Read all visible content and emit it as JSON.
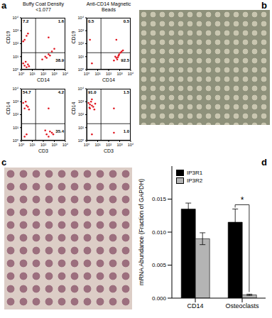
{
  "chart_data": [
    {
      "type": "scatter",
      "panel": "a",
      "title": "Buffy Coat Density <1.077",
      "xlabel": "CD14",
      "ylabel": "CD19",
      "color": "#e0141e",
      "log": true,
      "xlim": [
        1,
        10000
      ],
      "ylim": [
        1,
        10000
      ],
      "xticks": [
        {
          "value": 1,
          "label": "10⁰"
        },
        {
          "value": 10,
          "label": "10¹"
        },
        {
          "value": 100,
          "label": "10²"
        },
        {
          "value": 1000,
          "label": "10³"
        },
        {
          "value": 10000,
          "label": "10⁴"
        }
      ],
      "yticks": [
        {
          "value": 1,
          "label": "10⁰"
        },
        {
          "value": 10,
          "label": "10¹"
        },
        {
          "value": 100,
          "label": "10²"
        },
        {
          "value": 1000,
          "label": "10³"
        },
        {
          "value": 10000,
          "label": "10⁴"
        }
      ],
      "gates": {
        "x": 20,
        "y": 20
      },
      "x": [
        2,
        3,
        1.5,
        4,
        2.5,
        5,
        80,
        150,
        300,
        600,
        1000,
        200,
        400,
        2,
        3,
        1.5,
        4,
        300
      ],
      "y": [
        2,
        1.5,
        3,
        2.5,
        4,
        1.8,
        6,
        10,
        15,
        25,
        40,
        8,
        12,
        200,
        400,
        150,
        600,
        300
      ],
      "annotations": [
        {
          "text": "7.2",
          "position": "top-left"
        },
        {
          "text": "1.6",
          "position": "top-right"
        },
        {
          "text": "38.9",
          "position": "bottom-right"
        }
      ]
    },
    {
      "type": "scatter",
      "title": "Anti-CD14 Magnetic Beads",
      "xlabel": "CD14",
      "ylabel": "CD19",
      "color": "#e0141e",
      "log": true,
      "xlim": [
        1,
        10000
      ],
      "ylim": [
        1,
        10000
      ],
      "xticks": [
        {
          "value": 1,
          "label": "10⁰"
        },
        {
          "value": 10,
          "label": "10¹"
        },
        {
          "value": 100,
          "label": "10²"
        },
        {
          "value": 1000,
          "label": "10³"
        },
        {
          "value": 10000,
          "label": "10⁴"
        }
      ],
      "yticks": [
        {
          "value": 1,
          "label": "10⁰"
        },
        {
          "value": 10,
          "label": "10¹"
        },
        {
          "value": 100,
          "label": "10²"
        },
        {
          "value": 1000,
          "label": "10³"
        },
        {
          "value": 10000,
          "label": "10⁴"
        }
      ],
      "gates": {
        "x": 20,
        "y": 20
      },
      "x": [
        300,
        500,
        800,
        1200,
        600,
        400,
        900,
        2000,
        700,
        1500,
        3,
        2,
        500
      ],
      "y": [
        5,
        8,
        12,
        20,
        6,
        10,
        15,
        30,
        9,
        25,
        3,
        200,
        200
      ],
      "annotations": [
        {
          "text": "0.5",
          "position": "top-left"
        },
        {
          "text": "0.5",
          "position": "top-right"
        },
        {
          "text": "92.5",
          "position": "bottom-right"
        }
      ]
    },
    {
      "type": "scatter",
      "xlabel": "CD3",
      "ylabel": "CD14",
      "color": "#e0141e",
      "log": true,
      "xlim": [
        1,
        10000
      ],
      "ylim": [
        1,
        10000
      ],
      "xticks": [
        {
          "value": 1,
          "label": "10⁰"
        },
        {
          "value": 10,
          "label": "10¹"
        },
        {
          "value": 100,
          "label": "10²"
        },
        {
          "value": 1000,
          "label": "10³"
        },
        {
          "value": 10000,
          "label": "10⁴"
        }
      ],
      "yticks": [
        {
          "value": 1,
          "label": "10⁰"
        },
        {
          "value": 10,
          "label": "10¹"
        },
        {
          "value": 100,
          "label": "10²"
        },
        {
          "value": 1000,
          "label": "10³"
        },
        {
          "value": 10000,
          "label": "10⁴"
        }
      ],
      "gates": {
        "x": 20,
        "y": 20
      },
      "x": [
        2,
        3,
        1.5,
        4,
        2.5,
        5,
        200,
        400,
        300,
        600,
        150,
        800,
        2,
        3,
        300
      ],
      "y": [
        300,
        500,
        800,
        400,
        1000,
        250,
        3,
        5,
        2,
        4,
        6,
        3,
        2,
        3,
        300
      ],
      "annotations": [
        {
          "text": "54.7",
          "position": "top-left"
        },
        {
          "text": "4.2",
          "position": "top-right"
        },
        {
          "text": "35.4",
          "position": "bottom-right"
        }
      ]
    },
    {
      "type": "scatter",
      "xlabel": "CD3",
      "ylabel": "CD14",
      "color": "#e0141e",
      "log": true,
      "xlim": [
        1,
        10000
      ],
      "ylim": [
        1,
        10000
      ],
      "xticks": [
        {
          "value": 1,
          "label": "10⁰"
        },
        {
          "value": 10,
          "label": "10¹"
        },
        {
          "value": 100,
          "label": "10²"
        },
        {
          "value": 1000,
          "label": "10³"
        },
        {
          "value": 10000,
          "label": "10⁴"
        }
      ],
      "yticks": [
        {
          "value": 1,
          "label": "10⁰"
        },
        {
          "value": 10,
          "label": "10¹"
        },
        {
          "value": 100,
          "label": "10²"
        },
        {
          "value": 1000,
          "label": "10³"
        },
        {
          "value": 10000,
          "label": "10⁴"
        }
      ],
      "gates": {
        "x": 20,
        "y": 20
      },
      "x": [
        2,
        3,
        1.5,
        4,
        2.5,
        5,
        2,
        3,
        6,
        1.8,
        300,
        300,
        3
      ],
      "y": [
        300,
        500,
        800,
        400,
        1000,
        250,
        600,
        1500,
        700,
        350,
        300,
        4,
        3
      ],
      "annotations": [
        {
          "text": "91.0",
          "position": "top-left"
        },
        {
          "text": "1.5",
          "position": "top-right"
        },
        {
          "text": "1.0",
          "position": "bottom-right"
        }
      ]
    },
    {
      "type": "image",
      "panel": "b"
    },
    {
      "type": "image",
      "panel": "c"
    },
    {
      "type": "bar",
      "panel": "d",
      "ylabel": "mRNA Abundance (Fraction of GAPDH)",
      "categories": [
        "CD14",
        "Osteoclasts"
      ],
      "series": [
        {
          "name": "IP3R1",
          "color": "#000000",
          "values": [
            0.0135,
            0.0115
          ],
          "errors": [
            0.0009,
            0.002
          ]
        },
        {
          "name": "IP3R2",
          "color": "#b4b4b4",
          "values": [
            0.009,
            0.0005
          ],
          "errors": [
            0.0009,
            0.0001
          ]
        }
      ],
      "ylim": [
        0,
        0.02
      ],
      "yticks": [
        {
          "value": 0,
          "label": "0.000"
        },
        {
          "value": 0.005,
          "label": "0.005"
        },
        {
          "value": 0.01,
          "label": "0.010"
        },
        {
          "value": 0.015,
          "label": "0.015"
        }
      ],
      "legend": "top-left",
      "annotations": [
        {
          "text": "*",
          "between": [
            "IP3R1",
            "IP3R2"
          ],
          "category": "Osteoclasts"
        }
      ]
    }
  ]
}
